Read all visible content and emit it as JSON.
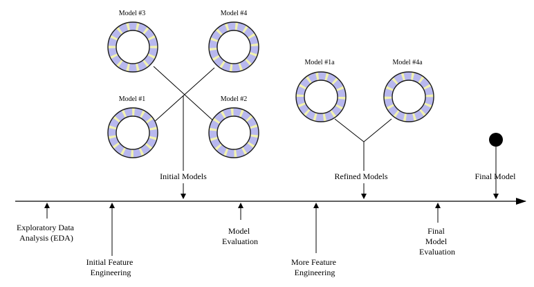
{
  "models": [
    {
      "id": "m3",
      "label": "Model #3"
    },
    {
      "id": "m4",
      "label": "Model #4"
    },
    {
      "id": "m1",
      "label": "Model #1"
    },
    {
      "id": "m2",
      "label": "Model #2"
    },
    {
      "id": "m1a",
      "label": "Model #1a"
    },
    {
      "id": "m4a",
      "label": "Model #4a"
    }
  ],
  "above_labels": {
    "initial_models": "Initial Models",
    "refined_models": "Refined Models",
    "final_model": "Final Model"
  },
  "below_labels": {
    "eda": [
      "Exploratory Data",
      "Analysis (EDA)"
    ],
    "initial_feature": [
      "Initial Feature",
      "Engineering"
    ],
    "model_eval": [
      "Model",
      "Evaluation"
    ],
    "more_feature": [
      "More Feature",
      "Engineering"
    ],
    "final_eval": [
      "Final",
      "Model",
      "Evaluation"
    ]
  },
  "colors": {
    "ring_fill": "#b8b8ee",
    "ring_stripe": "#f2f2b0",
    "ring_stroke": "#1a1a1a",
    "line": "#000000"
  }
}
